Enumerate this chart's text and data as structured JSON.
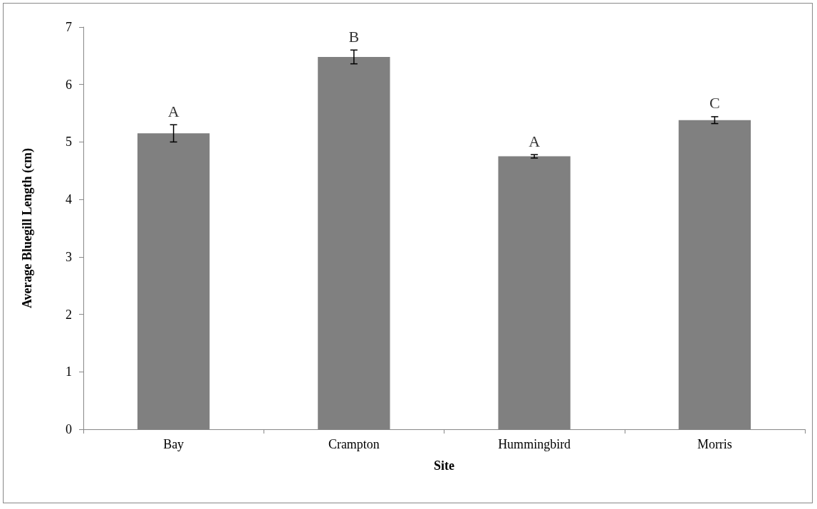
{
  "chart_data": {
    "type": "bar",
    "xlabel": "Site",
    "ylabel": "Average Bluegill Length (cm)",
    "categories": [
      "Bay",
      "Crampton",
      "Hummingbird",
      "Morris"
    ],
    "values": [
      5.15,
      6.48,
      4.75,
      5.38
    ],
    "errors": [
      0.15,
      0.12,
      0.03,
      0.06
    ],
    "color": "#808080",
    "ylim": [
      0,
      7
    ],
    "yticks": [
      0,
      1,
      2,
      3,
      4,
      5,
      6,
      7
    ],
    "grid": false,
    "annotations": [
      "A",
      "B",
      "A",
      "C"
    ]
  }
}
